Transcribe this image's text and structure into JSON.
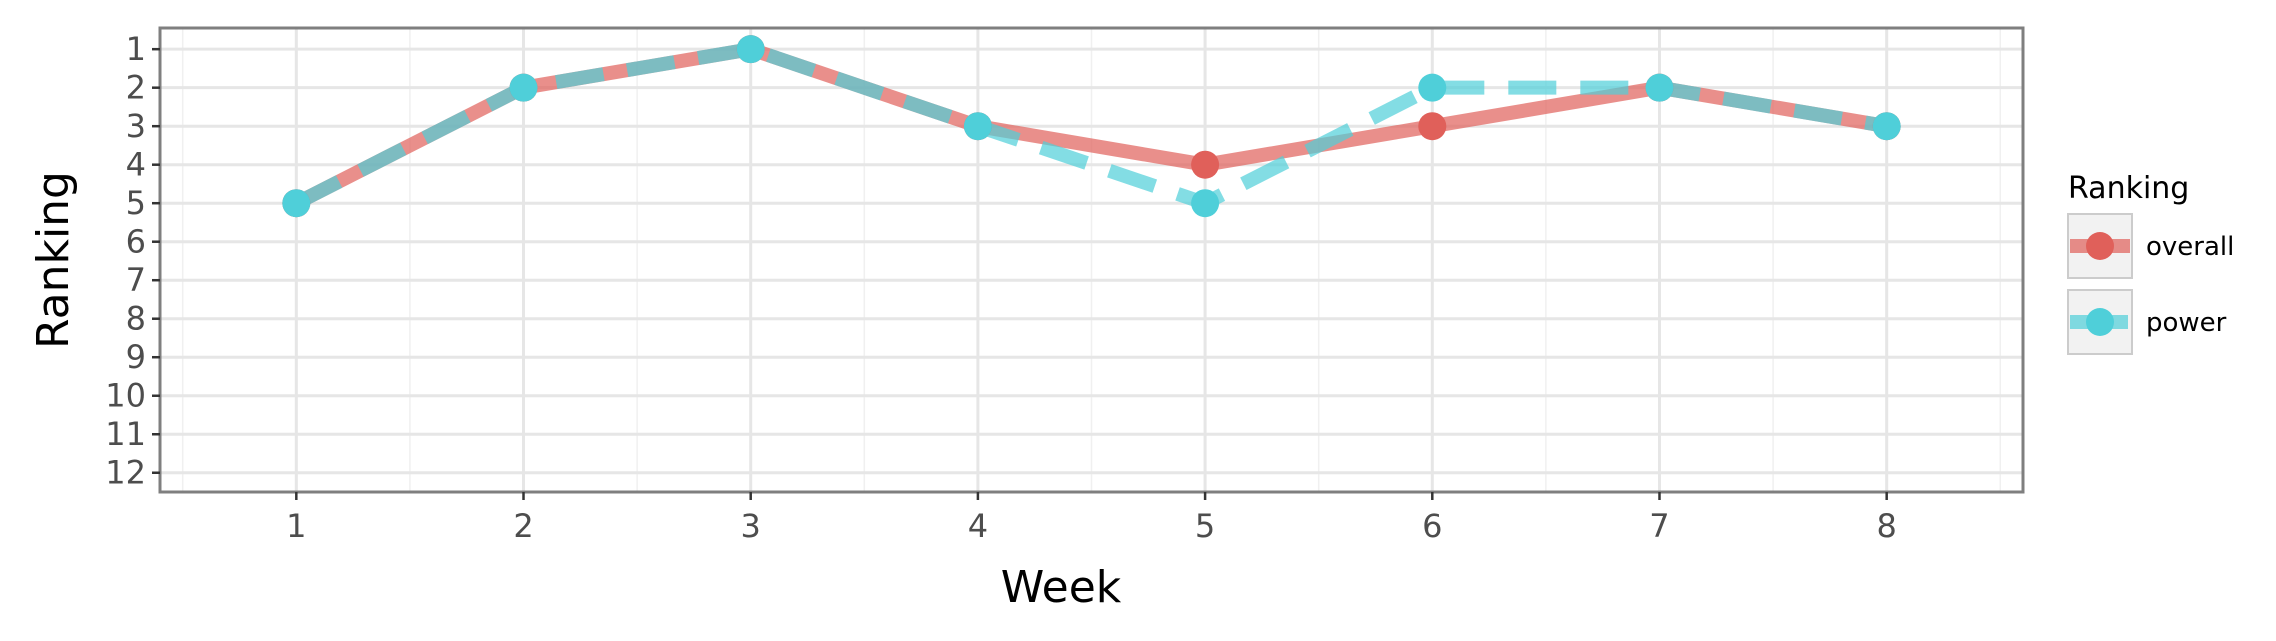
{
  "chart_data": {
    "type": "line",
    "xlabel": "Week",
    "ylabel": "Ranking",
    "x": [
      1,
      2,
      3,
      4,
      5,
      6,
      7,
      8
    ],
    "x_ticks": [
      "1",
      "2",
      "3",
      "4",
      "5",
      "6",
      "7",
      "8"
    ],
    "y_ticks": [
      "1",
      "2",
      "3",
      "4",
      "5",
      "6",
      "7",
      "8",
      "9",
      "10",
      "11",
      "12"
    ],
    "xlim": [
      0.4,
      8.6
    ],
    "ylim": [
      12.5,
      0.45
    ],
    "y_reversed": true,
    "grid": true,
    "legend": {
      "title": "Ranking",
      "position": "right"
    },
    "series": [
      {
        "name": "overall",
        "values": [
          5,
          2,
          1,
          3,
          4,
          3,
          2,
          3
        ],
        "color": "#e0605a",
        "linestyle": "solid"
      },
      {
        "name": "power",
        "values": [
          5,
          2,
          1,
          3,
          5,
          2,
          2,
          3
        ],
        "color": "#4fcfd9",
        "linestyle": "dashed"
      }
    ]
  }
}
